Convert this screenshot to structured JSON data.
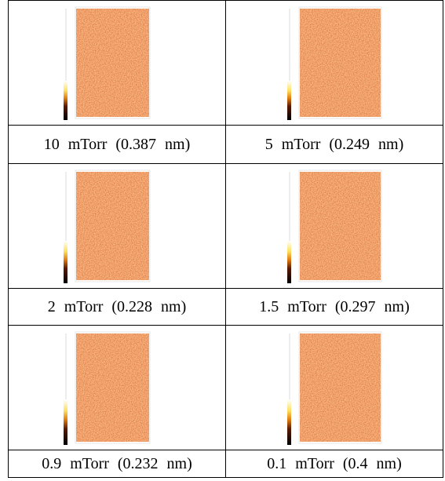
{
  "table": {
    "rows": [
      [
        "10 mTorr (0.387 nm)",
        "5 mTorr (0.249 nm)"
      ],
      [
        "2 mTorr (0.228 nm)",
        "1.5 mTorr (0.297 nm)"
      ],
      [
        "0.9 mTorr (0.232 nm)",
        "0.1 mTorr (0.4 nm)"
      ]
    ]
  }
}
